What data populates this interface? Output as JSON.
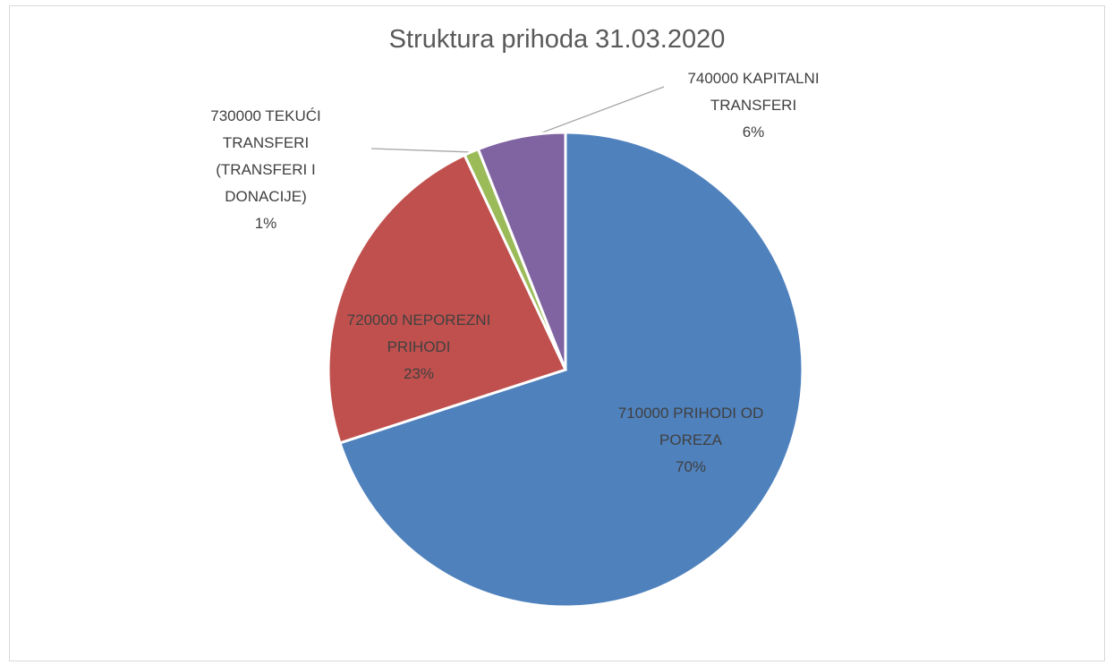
{
  "chart_data": {
    "type": "pie",
    "title": "Struktura prihoda 31.03.2020",
    "categories": [
      "710000 PRIHODI OD POREZA",
      "720000 NEPOREZNI PRIHODI",
      "730000 TEKUĆI TRANSFERI (TRANSFERI I DONACIJE)",
      "740000 KAPITALNI TRANSFERI"
    ],
    "values": [
      70,
      23,
      1,
      6
    ],
    "value_labels": [
      "70%",
      "23%",
      "1%",
      "6%"
    ],
    "colors": [
      "#4f81bd",
      "#c0504d",
      "#9bbb59",
      "#8064a2"
    ]
  }
}
